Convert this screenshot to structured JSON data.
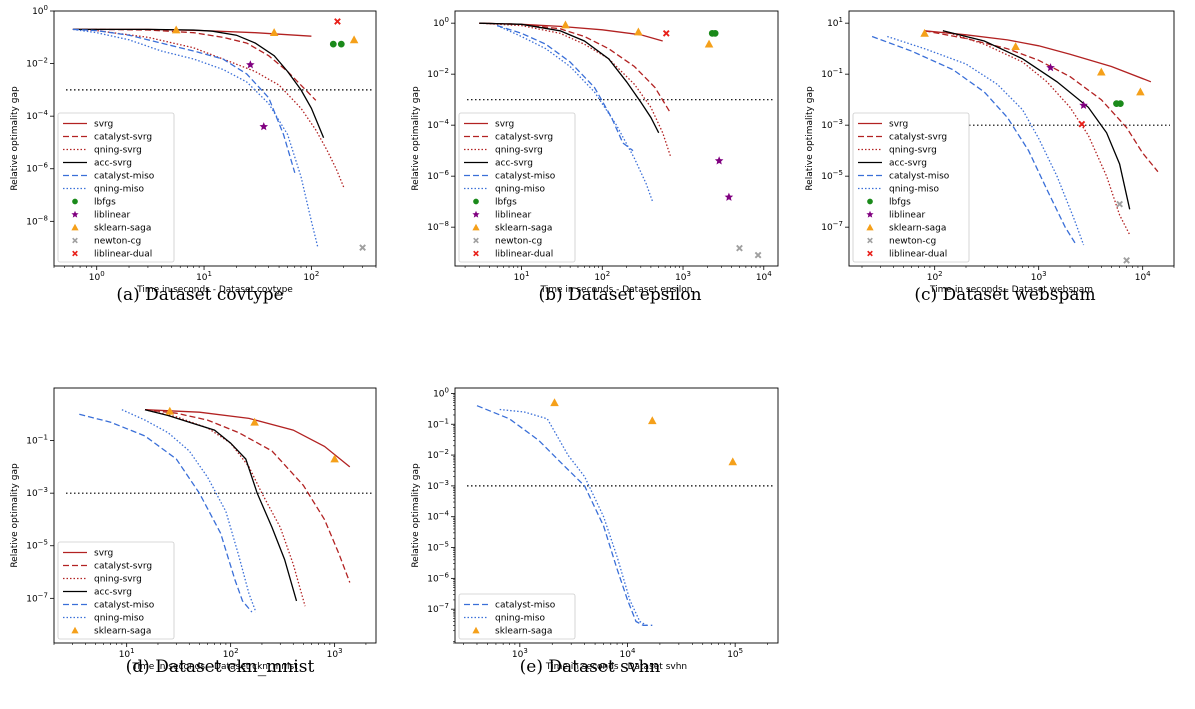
{
  "figure": {
    "threshold": 0.001
  },
  "styles": {
    "svrg": {
      "color": "#b22222",
      "dash": "solid"
    },
    "catalyst-svrg": {
      "color": "#b22222",
      "dash": "dashed"
    },
    "qning-svrg": {
      "color": "#b22222",
      "dash": "dotted"
    },
    "acc-svrg": {
      "color": "#000000",
      "dash": "solid"
    },
    "catalyst-miso": {
      "color": "#3a6fd8",
      "dash": "dashed"
    },
    "qning-miso": {
      "color": "#3a6fd8",
      "dash": "dotted"
    },
    "lbfgs": {
      "color": "#1a8a1a",
      "marker": "circle"
    },
    "liblinear": {
      "color": "#800080",
      "marker": "star"
    },
    "sklearn-saga": {
      "color": "#f5a01a",
      "marker": "triangle"
    },
    "newton-cg": {
      "color": "#a0a0a0",
      "marker": "x"
    },
    "liblinear-dual": {
      "color": "#e8201a",
      "marker": "x"
    }
  },
  "chart_data": [
    {
      "type": "line",
      "caption": "(a) Dataset covtype",
      "xlabel": "Time in seconds - Dataset covtype",
      "ylabel": "Relative optimality gap",
      "xscale": "log",
      "yscale": "log",
      "xlim": [
        0.4,
        400
      ],
      "ylim": [
        2e-10,
        1
      ],
      "xticks": [
        1,
        10,
        100
      ],
      "xticklabels": [
        "10^0",
        "10^1",
        "10^2"
      ],
      "yticks": [
        1e-08,
        1e-06,
        0.0001,
        0.01,
        1
      ],
      "yticklabels": [
        "10^-8",
        "10^-6",
        "10^-4",
        "10^-2",
        "10^0"
      ],
      "legend_loc": "lower-left",
      "series": [
        {
          "name": "svrg",
          "x": [
            0.6,
            1,
            3,
            10,
            30,
            100
          ],
          "y": [
            0.2,
            0.2,
            0.2,
            0.18,
            0.15,
            0.11
          ]
        },
        {
          "name": "catalyst-svrg",
          "x": [
            0.6,
            1,
            3,
            8,
            15,
            25,
            40,
            60,
            80,
            110
          ],
          "y": [
            0.2,
            0.2,
            0.19,
            0.15,
            0.1,
            0.06,
            0.02,
            0.005,
            0.0015,
            0.0004
          ]
        },
        {
          "name": "qning-svrg",
          "x": [
            0.6,
            1,
            3,
            8,
            15,
            30,
            50,
            80,
            110,
            140,
            170,
            200
          ],
          "y": [
            0.2,
            0.18,
            0.1,
            0.04,
            0.015,
            0.005,
            0.0015,
            0.0002,
            3e-05,
            5e-06,
            1e-06,
            2e-07
          ]
        },
        {
          "name": "acc-svrg",
          "x": [
            0.6,
            1,
            3,
            8,
            12,
            20,
            30,
            45,
            60,
            80,
            100,
            130
          ],
          "y": [
            0.2,
            0.2,
            0.2,
            0.19,
            0.17,
            0.12,
            0.06,
            0.02,
            0.005,
            0.001,
            0.0002,
            1.5e-05
          ]
        },
        {
          "name": "catalyst-miso",
          "x": [
            0.6,
            1,
            2,
            4,
            8,
            15,
            25,
            40,
            55,
            70
          ],
          "y": [
            0.2,
            0.18,
            0.12,
            0.06,
            0.03,
            0.015,
            0.004,
            0.0005,
            2e-05,
            7e-07
          ]
        },
        {
          "name": "qning-miso",
          "x": [
            0.6,
            1,
            2,
            4,
            8,
            15,
            25,
            40,
            60,
            80,
            100,
            115
          ],
          "y": [
            0.2,
            0.15,
            0.08,
            0.03,
            0.015,
            0.006,
            0.002,
            0.0003,
            2e-05,
            5e-07,
            1e-08,
            1e-09
          ]
        },
        {
          "name": "lbfgs",
          "x": [
            160,
            190
          ],
          "y": [
            0.055,
            0.055
          ]
        },
        {
          "name": "liblinear",
          "x": [
            27,
            36
          ],
          "y": [
            0.009,
            4e-05
          ]
        },
        {
          "name": "sklearn-saga",
          "x": [
            5.5,
            45,
            250
          ],
          "y": [
            0.19,
            0.15,
            0.08
          ]
        },
        {
          "name": "newton-cg",
          "x": [
            300
          ],
          "y": [
            1e-09
          ]
        },
        {
          "name": "liblinear-dual",
          "x": [
            175
          ],
          "y": [
            0.4
          ]
        }
      ]
    },
    {
      "type": "line",
      "caption": "(b) Dataset epsilon",
      "xlabel": "Time in seconds - Dataset epsilon",
      "ylabel": "Relative optimality gap",
      "xscale": "log",
      "yscale": "log",
      "xlim": [
        1.5,
        15000
      ],
      "ylim": [
        3e-10,
        3
      ],
      "xticks": [
        10,
        100,
        1000,
        10000
      ],
      "xticklabels": [
        "10^1",
        "10^2",
        "10^3",
        "10^4"
      ],
      "yticks": [
        1e-08,
        1e-06,
        0.0001,
        0.01,
        1
      ],
      "yticklabels": [
        "10^-8",
        "10^-6",
        "10^-4",
        "10^-2",
        "10^0"
      ],
      "legend_loc": "lower-left",
      "series": [
        {
          "name": "svrg",
          "x": [
            3,
            10,
            30,
            100,
            300,
            560
          ],
          "y": [
            1,
            0.9,
            0.75,
            0.55,
            0.35,
            0.2
          ]
        },
        {
          "name": "catalyst-svrg",
          "x": [
            3,
            10,
            30,
            60,
            120,
            250,
            450,
            700
          ],
          "y": [
            1,
            0.9,
            0.6,
            0.3,
            0.1,
            0.02,
            0.003,
            0.0003
          ]
        },
        {
          "name": "qning-svrg",
          "x": [
            3,
            10,
            30,
            60,
            120,
            250,
            400,
            560,
            700
          ],
          "y": [
            1,
            0.8,
            0.4,
            0.15,
            0.04,
            0.004,
            0.0005,
            5e-05,
            6e-06
          ]
        },
        {
          "name": "acc-svrg",
          "x": [
            3,
            10,
            30,
            60,
            120,
            200,
            300,
            400,
            500
          ],
          "y": [
            1,
            0.9,
            0.5,
            0.2,
            0.04,
            0.005,
            0.0008,
            0.0002,
            5e-05
          ]
        },
        {
          "name": "catalyst-miso",
          "x": [
            5,
            10,
            20,
            40,
            80,
            130,
            180,
            240
          ],
          "y": [
            0.8,
            0.4,
            0.15,
            0.03,
            0.003,
            0.0002,
            2e-05,
            1e-05
          ]
        },
        {
          "name": "qning-miso",
          "x": [
            5,
            10,
            20,
            40,
            80,
            150,
            250,
            350,
            420
          ],
          "y": [
            0.8,
            0.3,
            0.1,
            0.02,
            0.002,
            0.0001,
            5e-06,
            5e-07,
            1e-07
          ]
        },
        {
          "name": "lbfgs",
          "x": [
            2300,
            2500
          ],
          "y": [
            0.4,
            0.4
          ]
        },
        {
          "name": "liblinear",
          "x": [
            2800,
            3700
          ],
          "y": [
            4e-06,
            1.5e-07
          ]
        },
        {
          "name": "sklearn-saga",
          "x": [
            35,
            280,
            2100
          ],
          "y": [
            0.85,
            0.45,
            0.15
          ]
        },
        {
          "name": "newton-cg",
          "x": [
            5000,
            8500
          ],
          "y": [
            1.5e-09,
            8e-10
          ]
        },
        {
          "name": "liblinear-dual",
          "x": [
            620
          ],
          "y": [
            0.4
          ]
        }
      ]
    },
    {
      "type": "line",
      "caption": "(c) Dataset webspam",
      "xlabel": "Time in seconds - Dataset webspam",
      "ylabel": "Relative optimality gap",
      "xscale": "log",
      "yscale": "log",
      "xlim": [
        15,
        20000
      ],
      "ylim": [
        3e-09,
        30
      ],
      "xticks": [
        100,
        1000,
        10000
      ],
      "xticklabels": [
        "10^2",
        "10^3",
        "10^4"
      ],
      "yticks": [
        1e-07,
        1e-05,
        0.001,
        0.1,
        10
      ],
      "yticklabels": [
        "10^-7",
        "10^-5",
        "10^-3",
        "10^-1",
        "10^1"
      ],
      "legend_loc": "lower-left",
      "series": [
        {
          "name": "svrg",
          "x": [
            80,
            200,
            500,
            1000,
            2000,
            5000,
            12000
          ],
          "y": [
            5,
            3.5,
            2.2,
            1.3,
            0.6,
            0.2,
            0.05
          ]
        },
        {
          "name": "catalyst-svrg",
          "x": [
            80,
            200,
            500,
            1000,
            2000,
            4000,
            7000,
            10000,
            14000
          ],
          "y": [
            5,
            2.5,
            1,
            0.35,
            0.08,
            0.01,
            0.0008,
            8e-05,
            1.5e-05
          ]
        },
        {
          "name": "qning-svrg",
          "x": [
            120,
            300,
            700,
            1200,
            2000,
            3000,
            4500,
            6000,
            7500
          ],
          "y": [
            5,
            1.5,
            0.3,
            0.05,
            0.005,
            0.0004,
            1e-05,
            3e-07,
            5e-08
          ]
        },
        {
          "name": "acc-svrg",
          "x": [
            120,
            300,
            700,
            1500,
            3000,
            4500,
            6000,
            7500
          ],
          "y": [
            5,
            2,
            0.4,
            0.05,
            0.005,
            0.0005,
            3e-05,
            5e-07
          ]
        },
        {
          "name": "catalyst-miso",
          "x": [
            25,
            60,
            150,
            300,
            500,
            800,
            1200,
            1800,
            2300
          ],
          "y": [
            3,
            0.8,
            0.15,
            0.02,
            0.002,
            0.0001,
            3e-06,
            1e-07,
            2e-08
          ]
        },
        {
          "name": "qning-miso",
          "x": [
            35,
            80,
            200,
            400,
            700,
            1000,
            1500,
            2200,
            2700
          ],
          "y": [
            3,
            1,
            0.25,
            0.04,
            0.004,
            0.0003,
            1e-05,
            2e-07,
            2e-08
          ]
        },
        {
          "name": "lbfgs",
          "x": [
            5600,
            6100
          ],
          "y": [
            0.007,
            0.007
          ]
        },
        {
          "name": "liblinear",
          "x": [
            1300,
            2700
          ],
          "y": [
            0.18,
            0.006
          ]
        },
        {
          "name": "sklearn-saga",
          "x": [
            80,
            600,
            4000,
            9500
          ],
          "y": [
            4,
            1.2,
            0.12,
            0.02
          ]
        },
        {
          "name": "newton-cg",
          "x": [
            6000,
            7000
          ],
          "y": [
            8e-07,
            5e-09
          ]
        },
        {
          "name": "liblinear-dual",
          "x": [
            2600
          ],
          "y": [
            0.0011
          ]
        }
      ]
    },
    {
      "type": "line",
      "caption": "(d) Dataset ckn_mnist",
      "xlabel": "Time in seconds - Dataset ckn_mnist",
      "ylabel": "Relative optimality gap",
      "xscale": "log",
      "yscale": "log",
      "xlim": [
        2,
        2500
      ],
      "ylim": [
        2e-09,
        10
      ],
      "xticks": [
        10,
        100,
        1000
      ],
      "xticklabels": [
        "10^1",
        "10^2",
        "10^3"
      ],
      "yticks": [
        1e-07,
        1e-05,
        0.001,
        0.1
      ],
      "yticklabels": [
        "10^-7",
        "10^-5",
        "10^-3",
        "10^-1"
      ],
      "legend_loc": "lower-left",
      "series": [
        {
          "name": "svrg",
          "x": [
            15,
            50,
            150,
            400,
            800,
            1400
          ],
          "y": [
            1.5,
            1.2,
            0.7,
            0.25,
            0.06,
            0.01
          ]
        },
        {
          "name": "catalyst-svrg",
          "x": [
            15,
            30,
            60,
            120,
            250,
            500,
            800,
            1100,
            1400
          ],
          "y": [
            1.5,
            1.1,
            0.6,
            0.2,
            0.04,
            0.002,
            0.0001,
            5e-06,
            4e-07
          ]
        },
        {
          "name": "qning-svrg",
          "x": [
            15,
            30,
            60,
            100,
            150,
            200,
            300,
            400,
            520
          ],
          "y": [
            1.5,
            0.8,
            0.3,
            0.08,
            0.01,
            0.001,
            5e-05,
            2e-06,
            5e-08
          ]
        },
        {
          "name": "acc-svrg",
          "x": [
            15,
            25,
            40,
            70,
            100,
            140,
            180,
            250,
            330,
            430
          ],
          "y": [
            1.5,
            0.9,
            0.5,
            0.25,
            0.08,
            0.02,
            0.001,
            5e-05,
            3e-06,
            8e-08
          ]
        },
        {
          "name": "catalyst-miso",
          "x": [
            3.5,
            7,
            15,
            30,
            50,
            80,
            110,
            130,
            160
          ],
          "y": [
            1,
            0.5,
            0.15,
            0.02,
            0.001,
            3e-05,
            5e-07,
            8e-08,
            3e-08
          ]
        },
        {
          "name": "qning-miso",
          "x": [
            9,
            15,
            25,
            40,
            60,
            90,
            120,
            150,
            175
          ],
          "y": [
            1.5,
            0.6,
            0.2,
            0.04,
            0.004,
            0.0002,
            4e-06,
            1.5e-07,
            3e-08
          ]
        },
        {
          "name": "sklearn-saga",
          "x": [
            26,
            170,
            1000
          ],
          "y": [
            1.3,
            0.5,
            0.02
          ]
        }
      ]
    },
    {
      "type": "line",
      "caption": "(e) Dataset svhn",
      "xlabel": "Time in seconds - Dataset svhn",
      "ylabel": "Relative optimality gap",
      "xscale": "log",
      "yscale": "log",
      "xlim": [
        250,
        250000
      ],
      "ylim": [
        8e-09,
        1.5
      ],
      "xticks": [
        1000,
        10000,
        100000
      ],
      "xticklabels": [
        "10^3",
        "10^4",
        "10^5"
      ],
      "yticks": [
        1e-07,
        1e-06,
        1e-05,
        0.0001,
        0.001,
        0.01,
        0.1,
        1
      ],
      "yticklabels": [
        "10^-7",
        "10^-6",
        "10^-5",
        "10^-4",
        "10^-3",
        "10^-2",
        "10^-1",
        "10^0"
      ],
      "legend_loc": "lower-left",
      "series": [
        {
          "name": "catalyst-miso",
          "x": [
            400,
            800,
            1500,
            2500,
            4000,
            6000,
            8000,
            10000,
            12000,
            14000,
            17000
          ],
          "y": [
            0.4,
            0.15,
            0.03,
            0.005,
            0.001,
            5e-05,
            2e-06,
            2e-07,
            4e-08,
            3e-08,
            3e-08
          ]
        },
        {
          "name": "qning-miso",
          "x": [
            650,
            1100,
            1800,
            2800,
            4000,
            6000,
            8000,
            10500,
            13000,
            15000
          ],
          "y": [
            0.3,
            0.25,
            0.15,
            0.01,
            0.002,
            0.0001,
            5e-06,
            2e-07,
            4e-08,
            3e-08
          ]
        },
        {
          "name": "sklearn-saga",
          "x": [
            2100,
            17000,
            95000
          ],
          "y": [
            0.5,
            0.13,
            0.006
          ]
        }
      ]
    }
  ]
}
